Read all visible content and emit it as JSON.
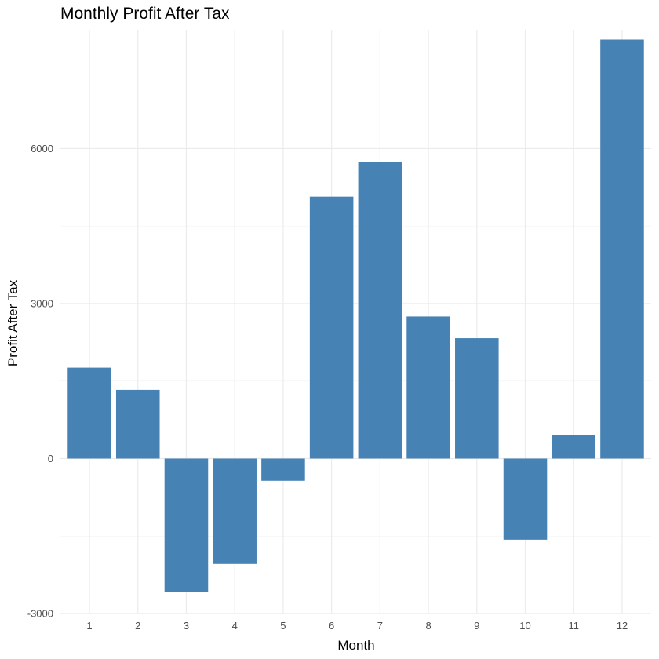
{
  "chart_data": {
    "type": "bar",
    "title": "Monthly Profit After Tax",
    "xlabel": "Month",
    "ylabel": "Profit After Tax",
    "categories": [
      "1",
      "2",
      "3",
      "4",
      "5",
      "6",
      "7",
      "8",
      "9",
      "10",
      "11",
      "12"
    ],
    "values": [
      1760,
      1330,
      -2590,
      -2040,
      -430,
      5070,
      5740,
      2750,
      2330,
      -1570,
      450,
      8110
    ],
    "ylim": [
      -3000,
      8300
    ],
    "yticks": [
      -3000,
      0,
      3000,
      6000
    ],
    "ytick_labels": [
      "-3000",
      "0",
      "3000",
      "6000"
    ],
    "grid": true,
    "legend": "none",
    "colors": {
      "bar": "#4682B4",
      "background": "#FFFFFF",
      "grid_major": "#EBEBEB",
      "grid_minor": "#F3F3F3"
    }
  }
}
